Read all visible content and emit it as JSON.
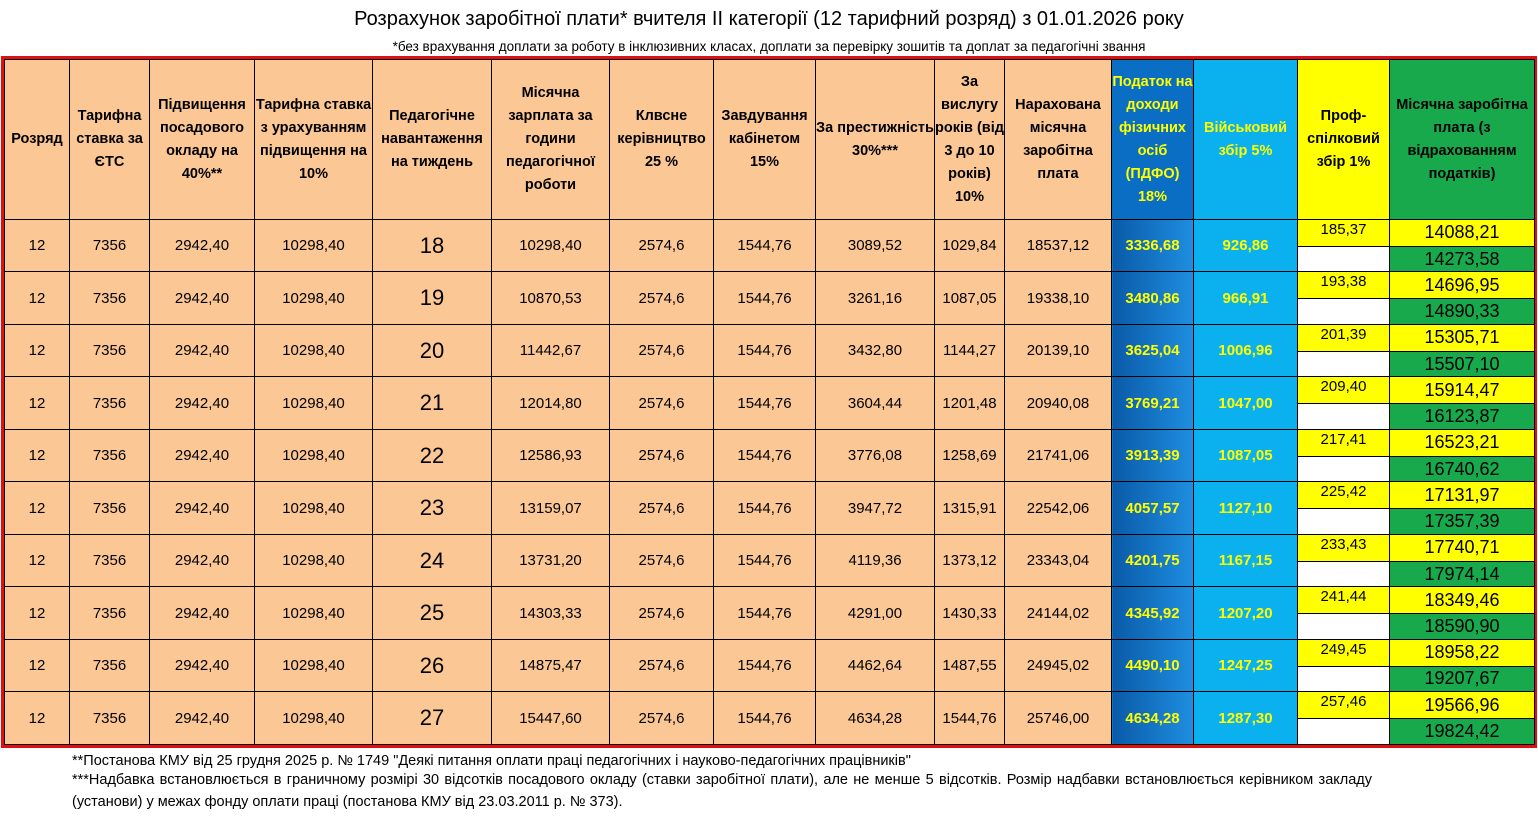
{
  "title": "Розрахунок заробітної плати* вчителя II категорії (12 тарифний розряд) з 01.01.2026 року",
  "subtitle": "*без врахування доплати за роботу в інклюзивних класах, доплати за перевірку зошитів та доплат за педагогічні звання",
  "headers": {
    "grade": "Розряд",
    "rate_ets": "Тарифна ставка за ЄТС",
    "raise40": "Підвищення посадового окладу на 40%**",
    "rate_raised": "Тарифна ставка з урахуванням підвищення на 10%",
    "load": "Педагогічне навантаження на тиждень",
    "monthly_hours": "Місячна зарплата за години педагогічної роботи",
    "class_lead": "Клвсне керівництво 25 %",
    "cabinet": "Завдування кабінетом 15%",
    "prestige": "За престижність 30%***",
    "seniority": "За вислугу років (від 3 до 10 років) 10%",
    "accrued": "Нарахована місячна заробітна плата",
    "pdfo": "Податок на доходи фізичних осіб (ПДФО) 18%",
    "military": "Військовий збір 5%",
    "union": "Проф-спілковий збір 1%",
    "net": "Місячна заробітна плата (з відрахованням податків)"
  },
  "rows": [
    {
      "grade": "12",
      "rate_ets": "7356",
      "raise40": "2942,40",
      "rate_raised": "10298,40",
      "load": "18",
      "monthly_hours": "10298,40",
      "class_lead": "2574,6",
      "cabinet": "1544,76",
      "prestige": "3089,52",
      "seniority": "1029,84",
      "accrued": "18537,12",
      "pdfo": "3336,68",
      "military": "926,86",
      "union": "185,37",
      "net_union": "14088,21",
      "net": "14273,58"
    },
    {
      "grade": "12",
      "rate_ets": "7356",
      "raise40": "2942,40",
      "rate_raised": "10298,40",
      "load": "19",
      "monthly_hours": "10870,53",
      "class_lead": "2574,6",
      "cabinet": "1544,76",
      "prestige": "3261,16",
      "seniority": "1087,05",
      "accrued": "19338,10",
      "pdfo": "3480,86",
      "military": "966,91",
      "union": "193,38",
      "net_union": "14696,95",
      "net": "14890,33"
    },
    {
      "grade": "12",
      "rate_ets": "7356",
      "raise40": "2942,40",
      "rate_raised": "10298,40",
      "load": "20",
      "monthly_hours": "11442,67",
      "class_lead": "2574,6",
      "cabinet": "1544,76",
      "prestige": "3432,80",
      "seniority": "1144,27",
      "accrued": "20139,10",
      "pdfo": "3625,04",
      "military": "1006,96",
      "union": "201,39",
      "net_union": "15305,71",
      "net": "15507,10"
    },
    {
      "grade": "12",
      "rate_ets": "7356",
      "raise40": "2942,40",
      "rate_raised": "10298,40",
      "load": "21",
      "monthly_hours": "12014,80",
      "class_lead": "2574,6",
      "cabinet": "1544,76",
      "prestige": "3604,44",
      "seniority": "1201,48",
      "accrued": "20940,08",
      "pdfo": "3769,21",
      "military": "1047,00",
      "union": "209,40",
      "net_union": "15914,47",
      "net": "16123,87"
    },
    {
      "grade": "12",
      "rate_ets": "7356",
      "raise40": "2942,40",
      "rate_raised": "10298,40",
      "load": "22",
      "monthly_hours": "12586,93",
      "class_lead": "2574,6",
      "cabinet": "1544,76",
      "prestige": "3776,08",
      "seniority": "1258,69",
      "accrued": "21741,06",
      "pdfo": "3913,39",
      "military": "1087,05",
      "union": "217,41",
      "net_union": "16523,21",
      "net": "16740,62"
    },
    {
      "grade": "12",
      "rate_ets": "7356",
      "raise40": "2942,40",
      "rate_raised": "10298,40",
      "load": "23",
      "monthly_hours": "13159,07",
      "class_lead": "2574,6",
      "cabinet": "1544,76",
      "prestige": "3947,72",
      "seniority": "1315,91",
      "accrued": "22542,06",
      "pdfo": "4057,57",
      "military": "1127,10",
      "union": "225,42",
      "net_union": "17131,97",
      "net": "17357,39"
    },
    {
      "grade": "12",
      "rate_ets": "7356",
      "raise40": "2942,40",
      "rate_raised": "10298,40",
      "load": "24",
      "monthly_hours": "13731,20",
      "class_lead": "2574,6",
      "cabinet": "1544,76",
      "prestige": "4119,36",
      "seniority": "1373,12",
      "accrued": "23343,04",
      "pdfo": "4201,75",
      "military": "1167,15",
      "union": "233,43",
      "net_union": "17740,71",
      "net": "17974,14"
    },
    {
      "grade": "12",
      "rate_ets": "7356",
      "raise40": "2942,40",
      "rate_raised": "10298,40",
      "load": "25",
      "monthly_hours": "14303,33",
      "class_lead": "2574,6",
      "cabinet": "1544,76",
      "prestige": "4291,00",
      "seniority": "1430,33",
      "accrued": "24144,02",
      "pdfo": "4345,92",
      "military": "1207,20",
      "union": "241,44",
      "net_union": "18349,46",
      "net": "18590,90"
    },
    {
      "grade": "12",
      "rate_ets": "7356",
      "raise40": "2942,40",
      "rate_raised": "10298,40",
      "load": "26",
      "monthly_hours": "14875,47",
      "class_lead": "2574,6",
      "cabinet": "1544,76",
      "prestige": "4462,64",
      "seniority": "1487,55",
      "accrued": "24945,02",
      "pdfo": "4490,10",
      "military": "1247,25",
      "union": "249,45",
      "net_union": "18958,22",
      "net": "19207,67"
    },
    {
      "grade": "12",
      "rate_ets": "7356",
      "raise40": "2942,40",
      "rate_raised": "10298,40",
      "load": "27",
      "monthly_hours": "15447,60",
      "class_lead": "2574,6",
      "cabinet": "1544,76",
      "prestige": "4634,28",
      "seniority": "1544,76",
      "accrued": "25746,00",
      "pdfo": "4634,28",
      "military": "1287,30",
      "union": "257,46",
      "net_union": "19566,96",
      "net": "19824,42"
    }
  ],
  "footnotes": [
    "**Постанова КМУ від 25 грудня 2025 р. № 1749 \"Деякі питання оплати праці педагогічних і науково-педагогічних працівників\"",
    "***Надбавка встановлюється в граничному розмірі 30 відсотків посадового окладу (ставки заробітної плати), але не менше 5 відсотків. Розмір надбавки встановлюється керівником закладу (установи) у межах фонду оплати праці (постанова КМУ від 23.03.2011 р. № 373)."
  ],
  "colors": {
    "table_border": "#e01010",
    "base_cell": "#fbc795",
    "pdfo": "#0a6fc4",
    "military": "#0bb0ef",
    "union": "#ffff00",
    "net": "#17a94b",
    "header_text_highlight": "#ffff00"
  }
}
